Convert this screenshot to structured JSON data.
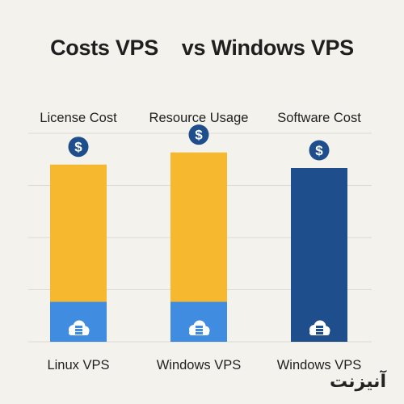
{
  "title": "Costs VPS    vs Windows VPS",
  "watermark": "آنیزنت",
  "chart_data": {
    "type": "bar",
    "title": "Costs VPS    vs Windows VPS",
    "column_headers": [
      "License Cost",
      "Resource Usage",
      "Software Cost"
    ],
    "categories": [
      "Linux VPS",
      "Windows VPS",
      "Windows VPS"
    ],
    "series": [
      {
        "values": [
          2.3,
          2.3,
          0
        ]
      },
      {
        "values": [
          7.9,
          8.6,
          10.0
        ]
      }
    ],
    "ylim": [
      0,
      12
    ],
    "grid": true,
    "colors": {
      "base": "#3f8ce0",
      "upper": "#f5b82e",
      "software": "#1f4e8c",
      "icon": "#1f4e8c"
    },
    "icons": [
      "dollar-icon",
      "server-cloud-icon"
    ]
  }
}
